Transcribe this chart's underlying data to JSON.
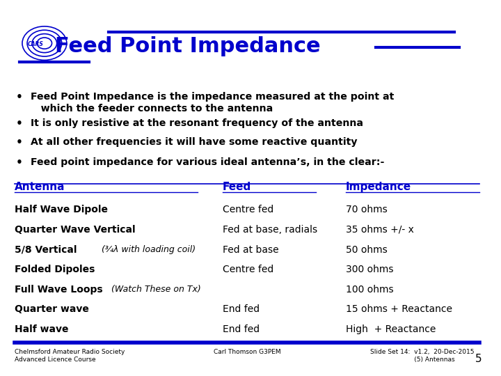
{
  "title": "Feed Point Impedance",
  "title_color": "#0000CC",
  "bg_color": "#FFFFFF",
  "blue_color": "#0000CC",
  "bullet_color": "#000000",
  "bullets": [
    "Feed Point Impedance is the impedance measured at the point at\n   which the feeder connects to the antenna",
    "It is only resistive at the resonant frequency of the antenna",
    "At all other frequencies it will have some reactive quantity",
    "Feed point impedance for various ideal antenna’s, in the clear:-"
  ],
  "table_headers": [
    "Antenna",
    "Feed",
    "Impedance"
  ],
  "table_rows": [
    [
      "Half Wave Dipole",
      "Centre fed",
      "70 ohms"
    ],
    [
      "Quarter Wave Vertical",
      "Fed at base, radials",
      "35 ohms +/- x"
    ],
    [
      "5/8 Vertical (¾λ with loading coil)",
      "Fed at base",
      "50 ohms"
    ],
    [
      "Folded Dipoles",
      "Centre fed",
      "300 ohms"
    ],
    [
      "Full Wave Loops (Watch These on Tx)",
      "",
      "100 ohms"
    ],
    [
      "Quarter wave",
      "End fed",
      "15 ohms + Reactance"
    ],
    [
      "Half wave",
      "End fed",
      "High  + Reactance"
    ]
  ],
  "footer_left": "Chelmsford Amateur Radio Society\nAdvanced Licence Course",
  "footer_center": "Carl Thomson G3PEM",
  "footer_right": "Slide Set 14:  v1.2,  20-Dec-2015\n                      (5) Antennas",
  "footer_page": "5",
  "bold_parts": [
    "5/8 Vertical ",
    "Full Wave Loops "
  ],
  "italic_parts": [
    "(¾λ with loading coil)",
    "(Watch These on Tx)"
  ],
  "bold_offsets": [
    0.175,
    0.195
  ]
}
